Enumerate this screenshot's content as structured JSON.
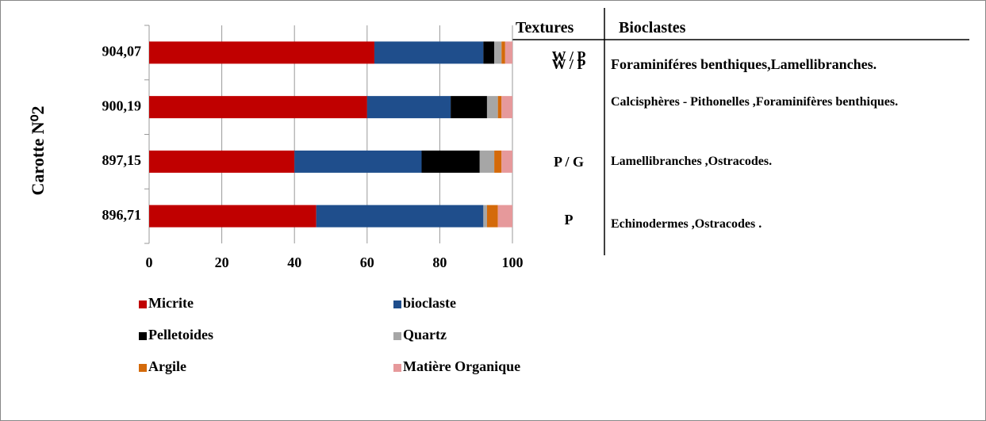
{
  "chart_data": {
    "type": "stacked_barh",
    "ylabel": "Carotte N⁰2",
    "categories": [
      "904,07",
      "900,19",
      "897,15",
      "896,71"
    ],
    "series": [
      {
        "name": "Micrite",
        "color": "#c00000",
        "values": [
          62,
          60,
          40,
          46
        ]
      },
      {
        "name": "bioclaste",
        "color": "#1f4e8c",
        "values": [
          30,
          23,
          35,
          46
        ]
      },
      {
        "name": "Pelletoides",
        "color": "#000000",
        "values": [
          3,
          10,
          16,
          0
        ]
      },
      {
        "name": "Quartz",
        "color": "#a6a6a6",
        "values": [
          2,
          3,
          4,
          1
        ]
      },
      {
        "name": "Argile",
        "color": "#d46a0a",
        "values": [
          1,
          1,
          2,
          3
        ]
      },
      {
        "name": "Matière Organique",
        "color": "#e6999b",
        "values": [
          2,
          3,
          3,
          4
        ]
      }
    ],
    "xlim": [
      0,
      100
    ],
    "xticks": [
      0,
      20,
      40,
      60,
      80,
      100
    ],
    "grid": true,
    "table": {
      "headers": [
        "Textures",
        "Bioclastes"
      ],
      "rows": [
        [
          "W / P",
          "Foraminiféres benthiques,Lamellibranches."
        ],
        [
          "W / P",
          "Calcisphères - Pithonelles ,Foraminifères benthiques."
        ],
        [
          "P / G",
          "Lamellibranches ,Ostracodes."
        ],
        [
          "P",
          "Echinodermes ,Ostracodes ."
        ]
      ]
    }
  }
}
